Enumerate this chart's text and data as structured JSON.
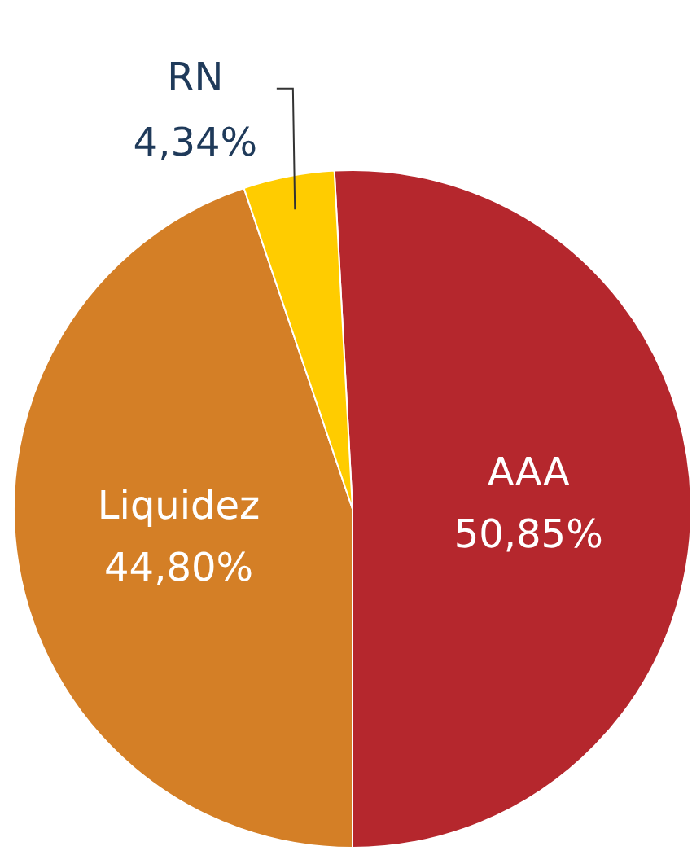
{
  "chart_data": {
    "type": "pie",
    "categories": [
      "AAA",
      "Liquidez",
      "RN"
    ],
    "values": [
      50.85,
      44.8,
      4.34
    ],
    "value_labels": [
      "50,85%",
      "44,80%",
      "4,34%"
    ],
    "colors": [
      "#b5272d",
      "#d47f26",
      "#ffcc00"
    ],
    "legend": false
  }
}
